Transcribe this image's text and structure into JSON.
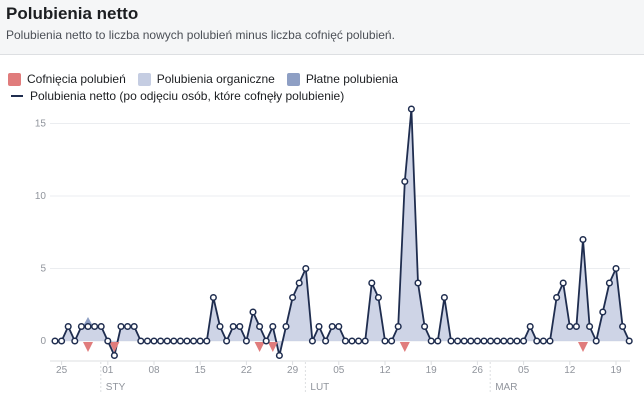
{
  "header": {
    "title": "Polubienia netto",
    "subtitle": "Polubienia netto to liczba nowych polubień minus liczba cofnięć polubień."
  },
  "colors": {
    "unlikes": "#e07c7c",
    "organic": "#c5cde2",
    "paid": "#8e9fc4",
    "net_line": "#1f2d4f",
    "grid": "#ebedf0"
  },
  "chart_data": {
    "type": "area",
    "legend": [
      {
        "label": "Cofnięcia polubień",
        "kind": "swatch",
        "color": "#e07c7c"
      },
      {
        "label": "Polubienia organiczne",
        "kind": "swatch",
        "color": "#c5cde2"
      },
      {
        "label": "Płatne polubienia",
        "kind": "swatch",
        "color": "#8e9fc4"
      },
      {
        "label": "Polubienia netto (po odjęciu osób, które cofnęły polubienie)",
        "kind": "line",
        "color": "#1f2d4f"
      }
    ],
    "x_start": "2018-12-24",
    "x_tick_labels": [
      {
        "label": "25",
        "day": 1
      },
      {
        "label": "01",
        "day": 8
      },
      {
        "label": "08",
        "day": 15
      },
      {
        "label": "15",
        "day": 22
      },
      {
        "label": "22",
        "day": 29
      },
      {
        "label": "29",
        "day": 36
      },
      {
        "label": "05",
        "day": 43
      },
      {
        "label": "12",
        "day": 50
      },
      {
        "label": "19",
        "day": 57
      },
      {
        "label": "26",
        "day": 64
      },
      {
        "label": "05",
        "day": 71
      },
      {
        "label": "12",
        "day": 78
      },
      {
        "label": "19",
        "day": 85
      }
    ],
    "month_labels": [
      {
        "label": "STY",
        "day": 8
      },
      {
        "label": "LUT",
        "day": 39
      },
      {
        "label": "MAR",
        "day": 67
      }
    ],
    "y_ticks": [
      0,
      5,
      10,
      15
    ],
    "ylim": [
      -1.5,
      16.5
    ],
    "net_values": [
      0,
      0,
      1,
      0,
      1,
      1,
      1,
      1,
      0,
      -1,
      1,
      1,
      1,
      0,
      0,
      0,
      0,
      0,
      0,
      0,
      0,
      0,
      0,
      0,
      3,
      1,
      0,
      1,
      1,
      0,
      2,
      1,
      0,
      1,
      -1,
      1,
      3,
      4,
      5,
      0,
      1,
      0,
      1,
      1,
      0,
      0,
      0,
      0,
      4,
      3,
      0,
      0,
      1,
      11,
      16,
      4,
      1,
      0,
      0,
      3,
      0,
      0,
      0,
      0,
      0,
      0,
      0,
      0,
      0,
      0,
      0,
      0,
      1,
      0,
      0,
      0,
      3,
      4,
      1,
      1,
      7,
      1,
      0,
      2,
      4,
      5,
      1,
      0
    ],
    "unlikes_markers_days": [
      5,
      9,
      31,
      33,
      53,
      80
    ],
    "paid_markers_days": [
      5
    ]
  }
}
